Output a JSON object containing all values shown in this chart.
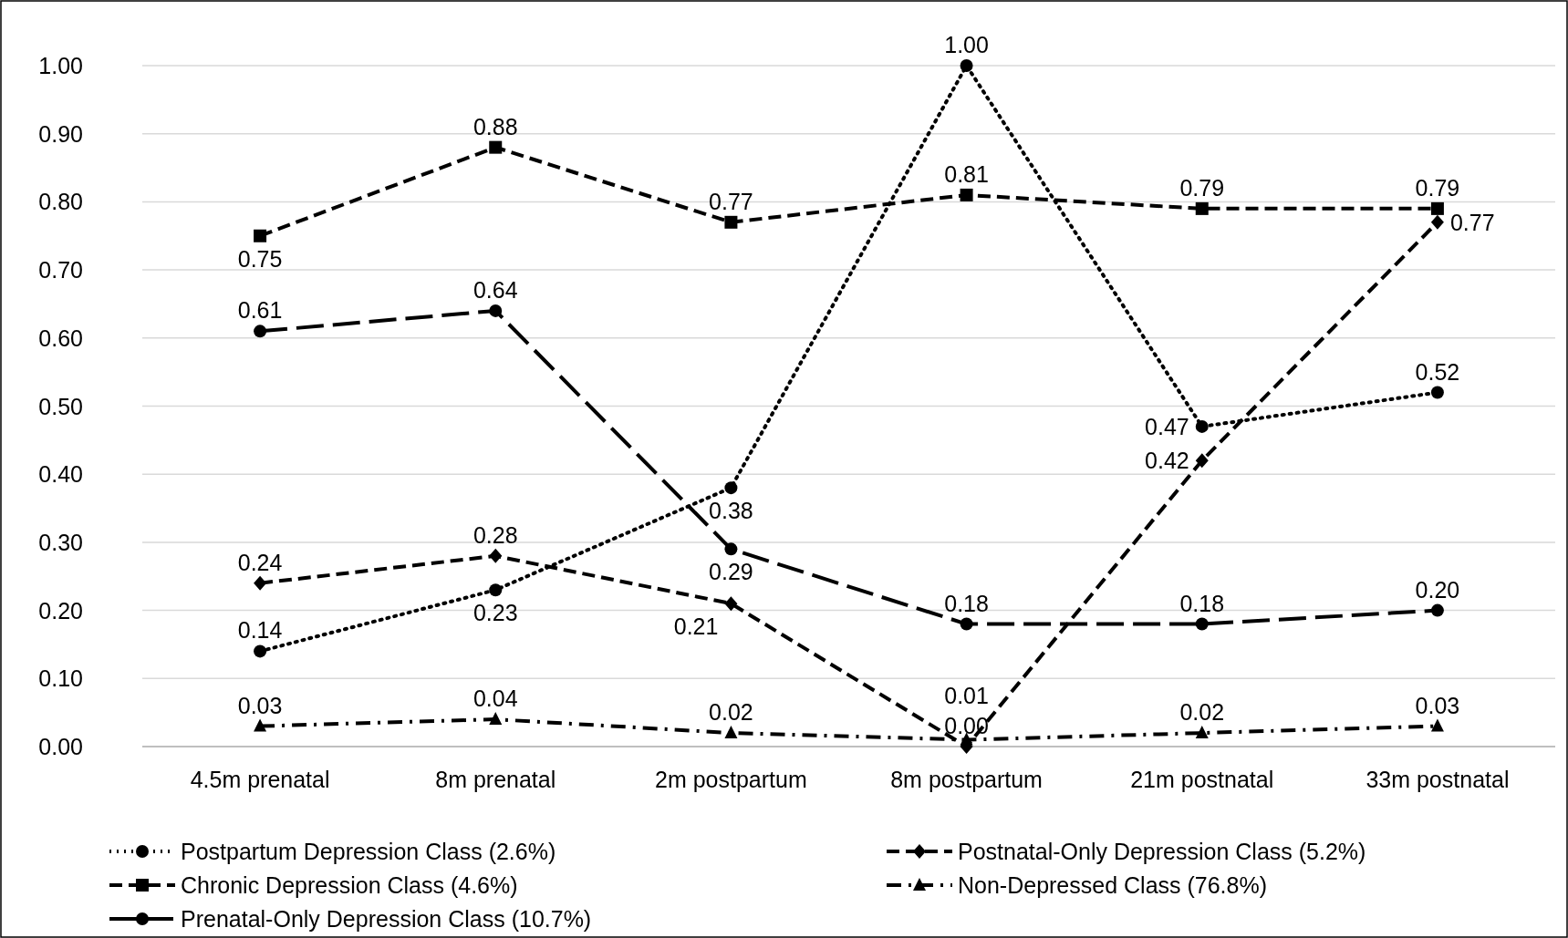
{
  "chart_data": {
    "type": "line",
    "categories": [
      "4.5m prenatal",
      "8m prenatal",
      "2m postpartum",
      "8m postpartum",
      "21m postnatal",
      "33m postnatal"
    ],
    "ylim": [
      0,
      1
    ],
    "yticks": [
      {
        "value": 0,
        "label": "0.00"
      },
      {
        "value": 0.1,
        "label": "0.10"
      },
      {
        "value": 0.2,
        "label": "0.20"
      },
      {
        "value": 0.3,
        "label": "0.30"
      },
      {
        "value": 0.4,
        "label": "0.40"
      },
      {
        "value": 0.5,
        "label": "0.50"
      },
      {
        "value": 0.6,
        "label": "0.60"
      },
      {
        "value": 0.7,
        "label": "0.70"
      },
      {
        "value": 0.8,
        "label": "0.80"
      },
      {
        "value": 0.9,
        "label": "0.90"
      },
      {
        "value": 1,
        "label": "1.00"
      }
    ],
    "grid": "y",
    "legend": "bottom",
    "series": [
      {
        "name": "Postpartum Depression Class (2.6%)",
        "color": "#000000",
        "marker": "circle",
        "line_style": "dotted",
        "values": [
          0.14,
          0.23,
          0.38,
          1.0,
          0.47,
          0.52
        ],
        "value_labels": [
          "0.14",
          "0.23",
          "0.38",
          "1.00",
          "0.47",
          "0.52"
        ]
      },
      {
        "name": "Postnatal-Only Depression Class (5.2%)",
        "color": "#000000",
        "marker": "diamond",
        "line_style": "dashed",
        "values": [
          0.24,
          0.28,
          0.21,
          0.0,
          0.42,
          0.77
        ],
        "value_labels": [
          "0.24",
          "0.28",
          "0.21",
          "0.00",
          "0.42",
          "0.77"
        ]
      },
      {
        "name": "Chronic Depression Class (4.6%)",
        "color": "#000000",
        "marker": "square",
        "line_style": "dashed",
        "values": [
          0.75,
          0.88,
          0.77,
          0.81,
          0.79,
          0.79
        ],
        "value_labels": [
          "0.75",
          "0.88",
          "0.77",
          "0.81",
          "0.79",
          "0.79"
        ]
      },
      {
        "name": "Non-Depressed Class (76.8%)",
        "color": "#000000",
        "marker": "triangle",
        "line_style": "dashdot",
        "values": [
          0.03,
          0.04,
          0.02,
          0.01,
          0.02,
          0.03
        ],
        "value_labels": [
          "0.03",
          "0.04",
          "0.02",
          "0.01",
          "0.02",
          "0.03"
        ]
      },
      {
        "name": "Prenatal-Only Depression Class (10.7%)",
        "color": "#000000",
        "marker": "circle",
        "line_style": "longdash",
        "values": [
          0.61,
          0.64,
          0.29,
          0.18,
          0.18,
          0.2
        ],
        "value_labels": [
          "0.61",
          "0.64",
          "0.29",
          "0.18",
          "0.18",
          "0.20"
        ]
      }
    ]
  }
}
